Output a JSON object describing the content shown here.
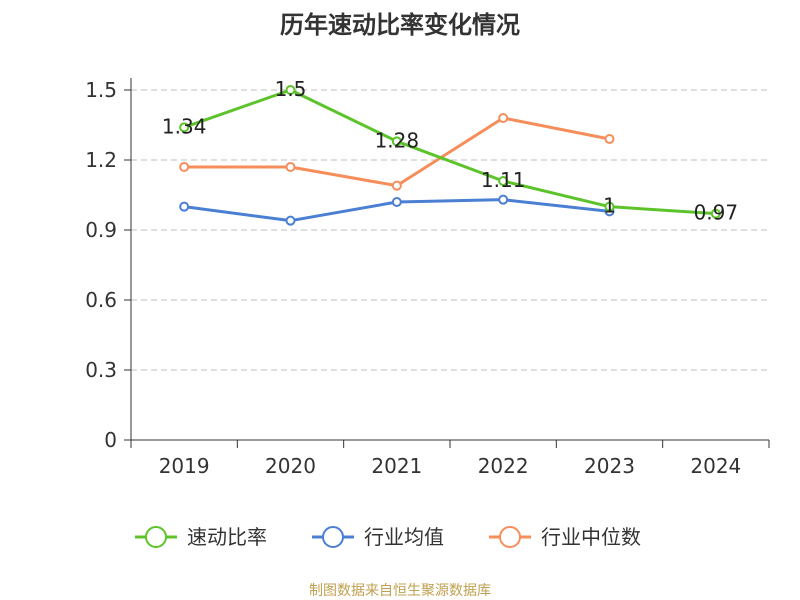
{
  "chart_data": {
    "type": "line",
    "title": "历年速动比率变化情况",
    "categories": [
      "2019",
      "2020",
      "2021",
      "2022",
      "2023",
      "2024"
    ],
    "ylim": [
      0,
      1.5
    ],
    "yticks": [
      "0",
      "0.3",
      "0.6",
      "0.9",
      "1.2",
      "1.5"
    ],
    "grid": true,
    "legend_position": "bottom",
    "series": [
      {
        "name": "速动比率",
        "color": "#5cc42a",
        "values": [
          1.34,
          1.5,
          1.28,
          1.11,
          1.0,
          0.97
        ],
        "labels": [
          "1.34",
          "1.5",
          "1.28",
          "1.11",
          "1",
          "0.97"
        ]
      },
      {
        "name": "行业均值",
        "color": "#4a7fd4",
        "values": [
          1.0,
          0.94,
          1.02,
          1.03,
          0.98,
          null
        ]
      },
      {
        "name": "行业中位数",
        "color": "#f58e5a",
        "values": [
          1.17,
          1.17,
          1.09,
          1.38,
          1.29,
          null
        ]
      }
    ]
  },
  "source": "制图数据来自恒生聚源数据库"
}
